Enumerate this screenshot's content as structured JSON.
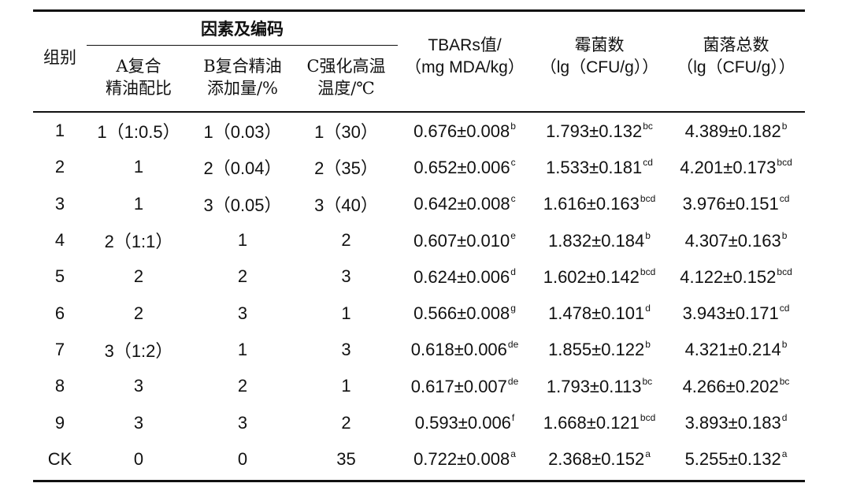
{
  "table": {
    "group_header": "因素及编码",
    "columns": {
      "group": "组别",
      "a": [
        "A复合",
        "精油配比"
      ],
      "b": [
        "B复合精油",
        "添加量/%"
      ],
      "c": [
        "C强化高温",
        "温度/℃"
      ],
      "tbars": [
        "TBARs值/",
        "（mg MDA/kg）"
      ],
      "mold": [
        "霉菌数",
        "（lg（CFU/g））"
      ],
      "colony": [
        "菌落总数",
        "（lg（CFU/g））"
      ]
    },
    "rows": [
      {
        "group": "1",
        "a": "1（1:0.5）",
        "b": "1（0.03）",
        "c": "1（30）",
        "tbars": "0.676±0.008",
        "tbars_sup": "b",
        "mold": "1.793±0.132",
        "mold_sup": "bc",
        "colony": "4.389±0.182",
        "colony_sup": "b"
      },
      {
        "group": "2",
        "a": "1",
        "b": "2（0.04）",
        "c": "2（35）",
        "tbars": "0.652±0.006",
        "tbars_sup": "c",
        "mold": "1.533±0.181",
        "mold_sup": "cd",
        "colony": "4.201±0.173",
        "colony_sup": "bcd"
      },
      {
        "group": "3",
        "a": "1",
        "b": "3（0.05）",
        "c": "3（40）",
        "tbars": "0.642±0.008",
        "tbars_sup": "c",
        "mold": "1.616±0.163",
        "mold_sup": "bcd",
        "colony": "3.976±0.151",
        "colony_sup": "cd"
      },
      {
        "group": "4",
        "a": "2（1:1）",
        "b": "1",
        "c": "2",
        "tbars": "0.607±0.010",
        "tbars_sup": "e",
        "mold": "1.832±0.184",
        "mold_sup": "b",
        "colony": "4.307±0.163",
        "colony_sup": "b"
      },
      {
        "group": "5",
        "a": "2",
        "b": "2",
        "c": "3",
        "tbars": "0.624±0.006",
        "tbars_sup": "d",
        "mold": "1.602±0.142",
        "mold_sup": "bcd",
        "colony": "4.122±0.152",
        "colony_sup": "bcd"
      },
      {
        "group": "6",
        "a": "2",
        "b": "3",
        "c": "1",
        "tbars": "0.566±0.008",
        "tbars_sup": "g",
        "mold": "1.478±0.101",
        "mold_sup": "d",
        "colony": "3.943±0.171",
        "colony_sup": "cd"
      },
      {
        "group": "7",
        "a": "3（1:2）",
        "b": "1",
        "c": "3",
        "tbars": "0.618±0.006",
        "tbars_sup": "de",
        "mold": "1.855±0.122",
        "mold_sup": "b",
        "colony": "4.321±0.214",
        "colony_sup": "b"
      },
      {
        "group": "8",
        "a": "3",
        "b": "2",
        "c": "1",
        "tbars": "0.617±0.007",
        "tbars_sup": "de",
        "mold": "1.793±0.113",
        "mold_sup": "bc",
        "colony": "4.266±0.202",
        "colony_sup": "bc"
      },
      {
        "group": "9",
        "a": "3",
        "b": "3",
        "c": "2",
        "tbars": "0.593±0.006",
        "tbars_sup": "f",
        "mold": "1.668±0.121",
        "mold_sup": "bcd",
        "colony": "3.893±0.183",
        "colony_sup": "d"
      },
      {
        "group": "CK",
        "a": "0",
        "b": "0",
        "c": "35",
        "tbars": "0.722±0.008",
        "tbars_sup": "a",
        "mold": "2.368±0.152",
        "mold_sup": "a",
        "colony": "5.255±0.132",
        "colony_sup": "a"
      }
    ]
  }
}
